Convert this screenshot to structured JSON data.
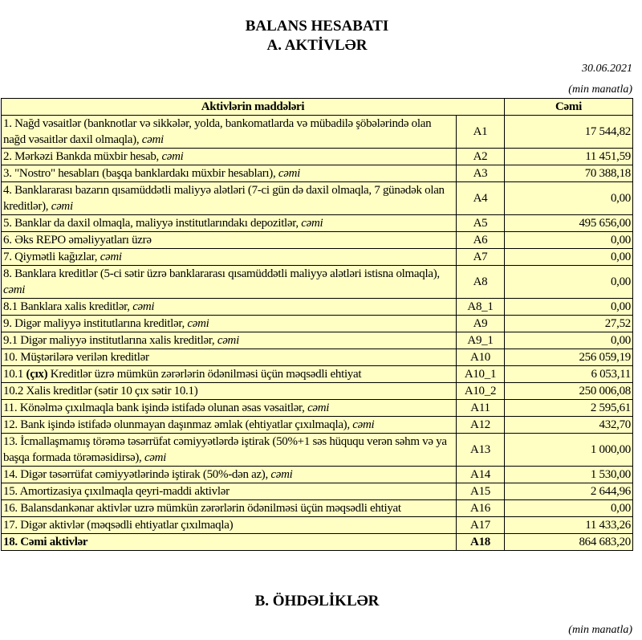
{
  "header": {
    "title": "BALANS HESABATI",
    "subtitle": "A. AKTİVLƏR",
    "date": "30.06.2021",
    "unit": "(min manatla)"
  },
  "table": {
    "columns": [
      "Aktivlərin   maddələri",
      "Cəmi"
    ],
    "rows": [
      {
        "parts": [
          {
            "t": "1. Nağd vəsaitlər (banknotlar və sikkələr, yolda, bankomatlarda və mübadilə şöbələrində olan nağd vəsaitlər daxil olmaqla), "
          },
          {
            "t": "cəmi",
            "s": "it"
          }
        ],
        "code": "A1",
        "value": "17 544,82"
      },
      {
        "parts": [
          {
            "t": "2. Mərkəzi Bankda müxbir hesab, "
          },
          {
            "t": "cəmi",
            "s": "it"
          }
        ],
        "code": "A2",
        "value": "11 451,59"
      },
      {
        "parts": [
          {
            "t": "3. \"Nostro\" hesabları (başqa banklardakı müxbir hesabları), "
          },
          {
            "t": "cəmi",
            "s": "it"
          }
        ],
        "code": "A3",
        "value": "70 388,18"
      },
      {
        "parts": [
          {
            "t": "4. Banklararası bazarın qısamüddətli maliyyə alətləri (7-ci gün də daxil olmaqla, 7 günədək olan kreditlər), "
          },
          {
            "t": "cəmi",
            "s": "it"
          }
        ],
        "code": "A4",
        "value": "0,00"
      },
      {
        "parts": [
          {
            "t": "5. Banklar da daxil olmaqla, maliyyə institutlarındakı depozitlər, "
          },
          {
            "t": "cəmi",
            "s": "it"
          }
        ],
        "code": "A5",
        "value": "495 656,00"
      },
      {
        "parts": [
          {
            "t": "6. Əks REPO əməliyyatları üzrə"
          }
        ],
        "code": "A6",
        "value": "0,00"
      },
      {
        "parts": [
          {
            "t": "7. Qiymətli kağızlar, "
          },
          {
            "t": "cəmi",
            "s": "it"
          }
        ],
        "code": "A7",
        "value": "0,00"
      },
      {
        "parts": [
          {
            "t": "8. Banklara kreditlər (5-ci sətir üzrə banklararası qısamüddətli maliyyə alətləri istisna olmaqla), "
          },
          {
            "t": "cəmi",
            "s": "it"
          }
        ],
        "code": "A8",
        "value": "0,00"
      },
      {
        "parts": [
          {
            "t": "8.1 Banklara xalis kreditlər, "
          },
          {
            "t": "cəmi",
            "s": "it"
          }
        ],
        "code": "A8_1",
        "value": "0,00"
      },
      {
        "parts": [
          {
            "t": "9. Digər maliyyə institutlarına kreditlər, "
          },
          {
            "t": "cəmi",
            "s": "it"
          }
        ],
        "code": "A9",
        "value": "27,52"
      },
      {
        "parts": [
          {
            "t": "9.1 Digər maliyyə institutlarına xalis kreditlər, "
          },
          {
            "t": "cəmi",
            "s": "it"
          }
        ],
        "code": "A9_1",
        "value": "0,00"
      },
      {
        "parts": [
          {
            "t": "10. Müştərilərə verilən kreditlər"
          }
        ],
        "code": "A10",
        "value": "256 059,19"
      },
      {
        "parts": [
          {
            "t": "10.1 "
          },
          {
            "t": "(çıx)",
            "s": "b"
          },
          {
            "t": " Kreditlər üzrə mümkün zərərlərin ödənilməsi üçün məqsədli ehtiyat"
          }
        ],
        "code": "A10_1",
        "value": "6 053,11"
      },
      {
        "parts": [
          {
            "t": "10.2 Xalis kreditlər (sətir 10 çıx sətir 10.1)"
          }
        ],
        "code": "A10_2",
        "value": "250 006,08"
      },
      {
        "parts": [
          {
            "t": "11. Könəlmə çıxılmaqla bank işində istifadə olunan əsas vəsaitlər, "
          },
          {
            "t": "cəmi",
            "s": "it"
          }
        ],
        "code": "A11",
        "value": "2 595,61"
      },
      {
        "parts": [
          {
            "t": "12. Bank işində istifadə olunmayan daşınmaz əmlak (ehtiyatlar çıxılmaqla), "
          },
          {
            "t": "cəmi",
            "s": "it"
          }
        ],
        "code": "A12",
        "value": "432,70"
      },
      {
        "parts": [
          {
            "t": "13. İcmallaşmamış törəmə təsərrüfat cəmiyyətlərdə iştirak (50%+1 səs hüququ verən səhm və ya başqa formada törəməsidirsə), "
          },
          {
            "t": "cəmi",
            "s": "it"
          }
        ],
        "code": "A13",
        "value": "1 000,00"
      },
      {
        "parts": [
          {
            "t": "14. Digər təsərrüfat cəmiyyətlərində iştirak (50%-dən az), "
          },
          {
            "t": "cəmi",
            "s": "it"
          }
        ],
        "code": "A14",
        "value": "1 530,00"
      },
      {
        "parts": [
          {
            "t": "15. Amortizasiya çıxılmaqla qeyri-maddi aktivlər"
          }
        ],
        "code": "A15",
        "value": "2 644,96"
      },
      {
        "parts": [
          {
            "t": "16. Balansdankənar aktivlər uzrə mümkün zərərlərin ödənilməsi üçün məqsədli ehtiyat"
          }
        ],
        "code": "A16",
        "value": "0,00"
      },
      {
        "parts": [
          {
            "t": "17. Digər aktivlər (məqsədli ehtiyatlar çıxılmaqla)"
          }
        ],
        "code": "A17",
        "value": "11 433,26"
      },
      {
        "parts": [
          {
            "t": "18. Cəmi aktivlər"
          }
        ],
        "code": "A18",
        "value": "864 683,20",
        "total": true
      }
    ]
  },
  "section_b": {
    "title": "B. ÖHDƏLİKLƏR",
    "unit": "(min manatla)"
  }
}
